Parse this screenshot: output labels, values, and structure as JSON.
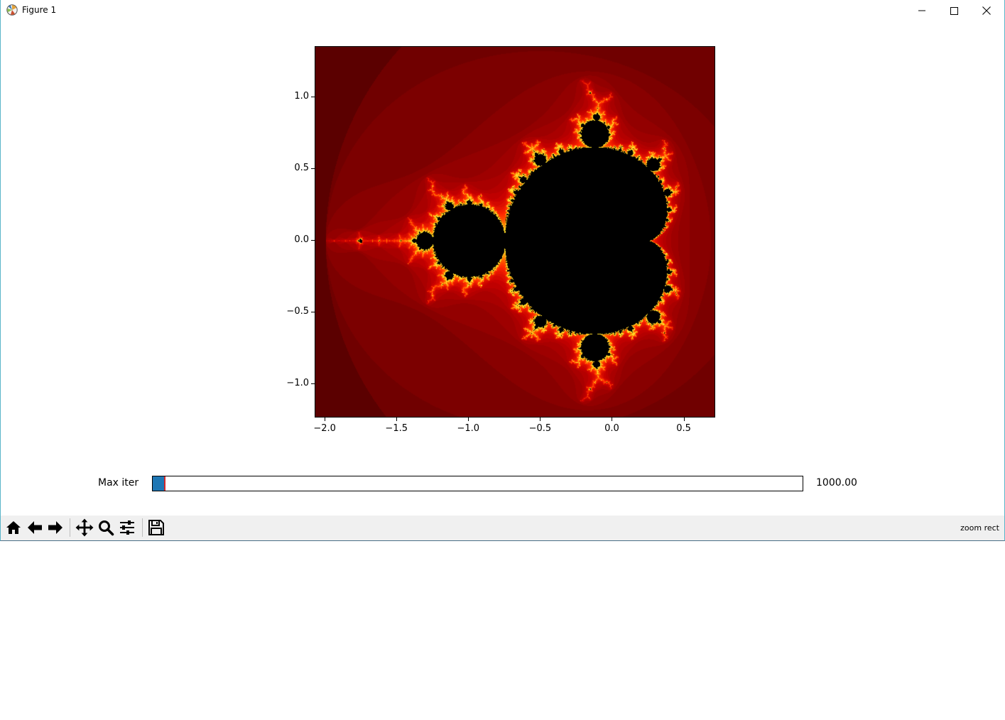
{
  "window": {
    "title": "Figure 1",
    "controls": {
      "minimize": "minimize-icon",
      "maximize": "maximize-icon",
      "close": "close-icon"
    }
  },
  "chart_data": {
    "type": "heatmap",
    "description_source": "Mandelbrot set escape-time image",
    "title": "",
    "xlabel": "",
    "ylabel": "",
    "xlim": [
      -2.07,
      0.71
    ],
    "ylim": [
      -1.23,
      1.35
    ],
    "x_ticks": [
      -2.0,
      -1.5,
      -1.0,
      -0.5,
      0.0,
      0.5
    ],
    "x_tick_labels": [
      "−2.0",
      "−1.5",
      "−1.0",
      "−0.5",
      "0.0",
      "0.5"
    ],
    "y_ticks": [
      1.0,
      0.5,
      0.0,
      -0.5,
      -1.0
    ],
    "y_tick_labels": [
      "1.0",
      "0.5",
      "0.0",
      "−0.5",
      "−1.0"
    ],
    "colormap": [
      "#000000",
      "#460000",
      "#6e0000",
      "#960000",
      "#c80000",
      "#ff2a00",
      "#ff7800",
      "#ffd200",
      "#000000"
    ],
    "grid": false,
    "legend": "none"
  },
  "slider": {
    "label": "Max iter",
    "value_text": "1000.00",
    "fill_fraction": 0.018,
    "fill_color": "#1f77b4",
    "handle_color": "#d62728"
  },
  "toolbar": {
    "buttons": [
      "home-icon",
      "back-icon",
      "forward-icon",
      "pan-icon",
      "zoom-icon",
      "configure-subplots-icon",
      "save-icon"
    ],
    "status": "zoom rect"
  }
}
